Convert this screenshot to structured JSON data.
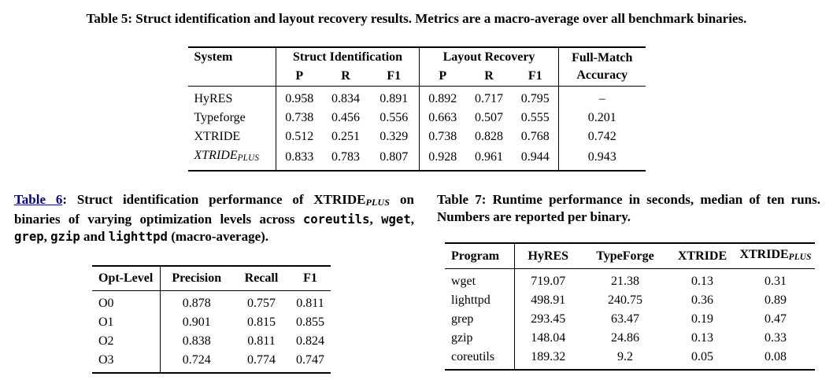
{
  "page": {
    "background_color": "#ffffff",
    "text_color": "#000000",
    "link_color": "#00008B"
  },
  "table5": {
    "caption": "Table 5: Struct identification and layout recovery results. Metrics are a macro-average over all benchmark binaries.",
    "headers": {
      "system": "System",
      "struct_identification": "Struct Identification",
      "layout_recovery": "Layout Recovery",
      "full_match_line1": "Full-Match",
      "full_match_line2": "Accuracy",
      "sub_columns": [
        "P",
        "R",
        "F1",
        "P",
        "R",
        "F1"
      ]
    },
    "rows": [
      {
        "system": "HyRES",
        "values": [
          "0.958",
          "0.834",
          "0.891",
          "0.892",
          "0.717",
          "0.795",
          "–"
        ]
      },
      {
        "system": "Typeforge",
        "values": [
          "0.738",
          "0.456",
          "0.556",
          "0.663",
          "0.507",
          "0.555",
          "0.201"
        ]
      },
      {
        "system": "XTRIDE",
        "values": [
          "0.512",
          "0.251",
          "0.329",
          "0.738",
          "0.828",
          "0.768",
          "0.742"
        ]
      },
      {
        "system": "XTRIDE",
        "system_subscript": "PLUS",
        "values": [
          "0.833",
          "0.783",
          "0.807",
          "0.928",
          "0.961",
          "0.944",
          "0.943"
        ]
      }
    ]
  },
  "table6": {
    "caption": {
      "link": "Table 6",
      "after_link": ": Struct identification performance of ",
      "xtride": "XTRIDE",
      "xtride_sub": "PLUS",
      "middle": " on binaries of varying optimization levels across ",
      "mono1": "coreutils",
      "sep1": ", ",
      "mono2": "wget",
      "sep2": ", ",
      "mono3": "grep",
      "sep3": ", ",
      "mono4": "gzip",
      "sep4": " and ",
      "mono5": "lighttpd",
      "tail": " (macro-average)."
    },
    "headers": [
      "Opt-Level",
      "Precision",
      "Recall",
      "F1"
    ],
    "rows": [
      {
        "opt_level": "O0",
        "values": [
          "0.878",
          "0.757",
          "0.811"
        ]
      },
      {
        "opt_level": "O1",
        "values": [
          "0.901",
          "0.815",
          "0.855"
        ]
      },
      {
        "opt_level": "O2",
        "values": [
          "0.838",
          "0.811",
          "0.824"
        ]
      },
      {
        "opt_level": "O3",
        "values": [
          "0.724",
          "0.774",
          "0.747"
        ]
      }
    ]
  },
  "table7": {
    "caption": "Table 7: Runtime performance in seconds, median of ten runs. Numbers are reported per binary.",
    "headers": {
      "program": "Program",
      "hyres": "HyRES",
      "typeforge": "TypeForge",
      "xtride": "XTRIDE",
      "xtride_plus": "XTRIDE",
      "xtride_plus_sub": "PLUS"
    },
    "rows": [
      {
        "program": "wget",
        "values": [
          "719.07",
          "21.38",
          "0.13",
          "0.31"
        ]
      },
      {
        "program": "lighttpd",
        "values": [
          "498.91",
          "240.75",
          "0.36",
          "0.89"
        ]
      },
      {
        "program": "grep",
        "values": [
          "293.45",
          "63.47",
          "0.19",
          "0.47"
        ]
      },
      {
        "program": "gzip",
        "values": [
          "148.04",
          "24.86",
          "0.13",
          "0.33"
        ]
      },
      {
        "program": "coreutils",
        "values": [
          "189.32",
          "9.2",
          "0.05",
          "0.08"
        ]
      }
    ]
  }
}
